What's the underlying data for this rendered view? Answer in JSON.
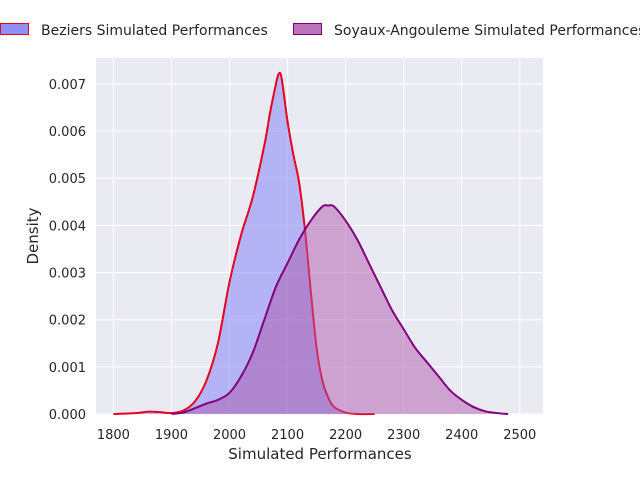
{
  "chart_data": {
    "type": "area",
    "title": "",
    "xlabel": "Simulated Performances",
    "ylabel": "Density",
    "xlim": [
      1770,
      2540
    ],
    "ylim": [
      0,
      0.00755
    ],
    "grid": true,
    "legend_position": "top",
    "x_ticks": [
      1800,
      1900,
      2000,
      2100,
      2200,
      2300,
      2400,
      2500
    ],
    "x_tick_labels": [
      "1800",
      "1900",
      "2000",
      "2100",
      "2200",
      "2300",
      "2400",
      "2500"
    ],
    "y_ticks": [
      0,
      0.001,
      0.002,
      0.003,
      0.004,
      0.005,
      0.006,
      0.007
    ],
    "y_tick_labels": [
      "0.000",
      "0.001",
      "0.002",
      "0.003",
      "0.004",
      "0.005",
      "0.006",
      "0.007"
    ],
    "series": [
      {
        "name": "Beziers Simulated Performances",
        "fill_color": "#7b7bf7",
        "line_color": "#e8001c",
        "x": [
          1800,
          1840,
          1860,
          1880,
          1900,
          1920,
          1940,
          1960,
          1980,
          2000,
          2020,
          2040,
          2060,
          2070,
          2080,
          2085,
          2090,
          2100,
          2110,
          2120,
          2130,
          2140,
          2150,
          2160,
          2170,
          2180,
          2200,
          2220,
          2250
        ],
        "y": [
          0.0,
          2e-05,
          5e-05,
          4e-05,
          2e-05,
          7e-05,
          0.00026,
          0.0007,
          0.0015,
          0.0028,
          0.0038,
          0.0046,
          0.0057,
          0.0064,
          0.007,
          0.00722,
          0.0071,
          0.0062,
          0.0055,
          0.0049,
          0.0039,
          0.0026,
          0.0014,
          0.0007,
          0.00035,
          0.00015,
          3e-05,
          0.0,
          0.0
        ]
      },
      {
        "name": "Soyaux-Angouleme Simulated Performances",
        "fill_color": "#b05aae",
        "line_color": "#800080",
        "x": [
          1900,
          1920,
          1940,
          1960,
          1980,
          2000,
          2020,
          2040,
          2060,
          2080,
          2100,
          2120,
          2140,
          2160,
          2170,
          2180,
          2200,
          2220,
          2240,
          2260,
          2280,
          2300,
          2320,
          2340,
          2360,
          2380,
          2400,
          2420,
          2440,
          2460,
          2480
        ],
        "y": [
          0.0,
          3e-05,
          0.00012,
          0.00022,
          0.0003,
          0.00045,
          0.0008,
          0.0013,
          0.002,
          0.0027,
          0.0032,
          0.0037,
          0.0041,
          0.0044,
          0.00442,
          0.0044,
          0.0041,
          0.0037,
          0.0032,
          0.0027,
          0.0022,
          0.0018,
          0.0014,
          0.0011,
          0.0008,
          0.0005,
          0.0003,
          0.00015,
          6e-05,
          2e-05,
          0.0
        ]
      }
    ]
  }
}
